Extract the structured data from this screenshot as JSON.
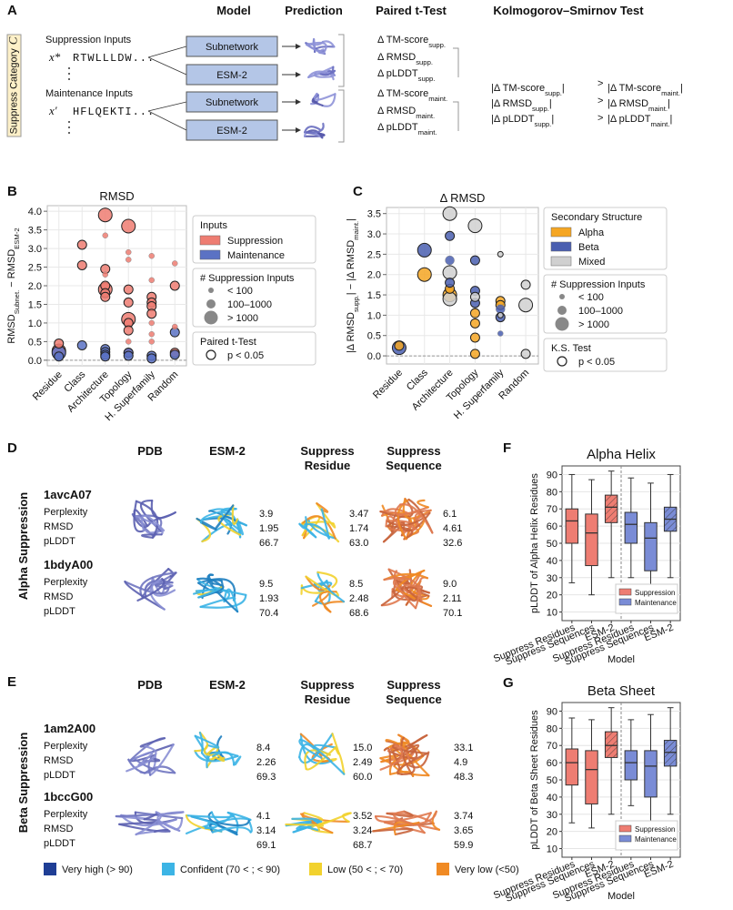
{
  "panels": {
    "A": {
      "label": "A",
      "headers": [
        "Model",
        "Prediction",
        "Paired t-Test",
        "Kolmogorov–Smirnov Test"
      ],
      "category": {
        "text": "Suppress Category",
        "var": "C"
      },
      "inputs": [
        {
          "title": "Suppression Inputs",
          "var": "x*",
          "sequence": "RTWLLLDW...",
          "color": "#d9302c",
          "models": [
            "Subnetwork",
            "ESM-2"
          ],
          "ttest": [
            [
              {
                "t": "Δ TM-score"
              },
              {
                "sub": "supp."
              }
            ],
            [
              {
                "t": "Δ RMSD"
              },
              {
                "sub": "supp."
              }
            ],
            [
              {
                "t": "Δ pLDDT"
              },
              {
                "sub": "supp."
              }
            ]
          ]
        },
        {
          "title": "Maintenance Inputs",
          "var": "x′",
          "sequence": "HFLQEKTI...",
          "color": "#222222",
          "models": [
            "Subnetwork",
            "ESM-2"
          ],
          "ttest": [
            [
              {
                "t": "Δ TM-score"
              },
              {
                "sub": "maint."
              }
            ],
            [
              {
                "t": "Δ RMSD"
              },
              {
                "sub": "maint."
              }
            ],
            [
              {
                "t": "Δ pLDDT"
              },
              {
                "sub": "maint."
              }
            ]
          ]
        }
      ],
      "ks": [
        {
          "left": [
            {
              "t": "|Δ TM-score"
            },
            {
              "sub": "supp."
            },
            {
              "t": "|"
            }
          ],
          "op": ">",
          "right": [
            {
              "t": "|Δ TM-score"
            },
            {
              "sub": "maint."
            },
            {
              "t": "|"
            }
          ]
        },
        {
          "left": [
            {
              "t": "|Δ RMSD"
            },
            {
              "sub": "supp."
            },
            {
              "t": "|"
            }
          ],
          "op": ">",
          "right": [
            {
              "t": "|Δ RMSD"
            },
            {
              "sub": "maint."
            },
            {
              "t": "|"
            }
          ]
        },
        {
          "left": [
            {
              "t": "|Δ pLDDT"
            },
            {
              "sub": "supp."
            },
            {
              "t": "|"
            }
          ],
          "op": ">",
          "right": [
            {
              "t": "|Δ pLDDT"
            },
            {
              "sub": "maint."
            },
            {
              "t": "|"
            }
          ]
        }
      ]
    },
    "D": {
      "label": "D",
      "side_label": "Alpha Suppression",
      "columns": [
        [
          "PDB"
        ],
        [
          "ESM-2"
        ],
        [
          "Suppress",
          "Residue"
        ],
        [
          "Suppress",
          "Sequence"
        ]
      ],
      "metrics": [
        "Perplexity",
        "RMSD",
        "pLDDT"
      ],
      "rows": [
        {
          "id": "1avcA07",
          "values": [
            [
              "3.9",
              "1.95",
              "66.7"
            ],
            [
              "3.47",
              "1.74",
              "63.0"
            ],
            [
              "6.1",
              "4.61",
              "32.6"
            ]
          ]
        },
        {
          "id": "1bdyA00",
          "values": [
            [
              "9.5",
              "1.93",
              "70.4"
            ],
            [
              "8.5",
              "2.48",
              "68.6"
            ],
            [
              "9.0",
              "2.11",
              "70.1"
            ]
          ]
        }
      ]
    },
    "E": {
      "label": "E",
      "side_label": "Beta Suppression",
      "columns": [
        [
          "PDB"
        ],
        [
          "ESM-2"
        ],
        [
          "Suppress",
          "Residue"
        ],
        [
          "Suppress",
          "Sequence"
        ]
      ],
      "metrics": [
        "Perplexity",
        "RMSD",
        "pLDDT"
      ],
      "rows": [
        {
          "id": "1am2A00",
          "values": [
            [
              "8.4",
              "2.26",
              "69.3"
            ],
            [
              "15.0",
              "2.49",
              "60.0"
            ],
            [
              "33.1",
              "4.9",
              "48.3"
            ]
          ]
        },
        {
          "id": "1bccG00",
          "values": [
            [
              "4.1",
              "3.14",
              "69.1"
            ],
            [
              "3.52",
              "3.24",
              "68.7"
            ],
            [
              "3.74",
              "3.65",
              "59.9"
            ]
          ]
        }
      ],
      "legend": [
        {
          "label": "Very high (> 90)",
          "color": "#1f3e95"
        },
        {
          "label": "Confident (70 < ; < 90)",
          "color": "#3cb4e5"
        },
        {
          "label": "Low (50 < ; < 70)",
          "color": "#f2d22e"
        },
        {
          "label": "Very low (<50)",
          "color": "#f08a24"
        }
      ]
    }
  },
  "chart_data": [
    {
      "panel_label": "B",
      "type": "scatter",
      "title": "RMSD",
      "ylabel": [
        {
          "t": "RMSD"
        },
        {
          "sub": "Subnet."
        },
        {
          "t": " − RMSD"
        },
        {
          "sub": "ESM-2"
        }
      ],
      "categories": [
        "Residue",
        "Class",
        "Architecture",
        "Topology",
        "H. Superfamily",
        "Random"
      ],
      "ylim": [
        -0.15,
        4.15
      ],
      "yticks": [
        {
          "value": 0,
          "label": "0.0"
        },
        0.5,
        {
          "value": 1,
          "label": "1.0"
        },
        1.5,
        {
          "value": 2,
          "label": "2.0"
        },
        2.5,
        {
          "value": 3,
          "label": "3.0"
        },
        3.5,
        {
          "value": 4,
          "label": "4.0"
        }
      ],
      "grid": true,
      "series": [
        {
          "name": "Suppression",
          "color": "#ee7d72",
          "x": [
            "Residue",
            "Residue",
            "Class",
            "Class",
            "Architecture",
            "Architecture",
            "Architecture",
            "Architecture",
            "Architecture",
            "Architecture",
            "Architecture",
            "Architecture",
            "Topology",
            "Topology",
            "Topology",
            "Topology",
            "Topology",
            "Topology",
            "Topology",
            "Topology",
            "Topology",
            "Topology",
            "H. Superfamily",
            "H. Superfamily",
            "H. Superfamily",
            "H. Superfamily",
            "H. Superfamily",
            "H. Superfamily",
            "H. Superfamily",
            "H. Superfamily",
            "H. Superfamily",
            "Random",
            "Random",
            "Random",
            "Random"
          ],
          "values": [
            0.45,
            0.25,
            3.1,
            2.55,
            3.9,
            3.35,
            2.45,
            2.3,
            2.0,
            1.9,
            1.8,
            1.7,
            3.6,
            2.9,
            2.7,
            1.9,
            1.55,
            1.1,
            1.0,
            0.8,
            0.5,
            0.2,
            2.8,
            2.15,
            1.7,
            1.55,
            1.45,
            1.25,
            1.0,
            0.7,
            0.5,
            2.6,
            2.0,
            0.9,
            0.2
          ],
          "sizes": [
            "100–1000",
            "> 1000",
            "100–1000",
            "100–1000",
            "> 1000",
            "< 100",
            "100–1000",
            "< 100",
            "100–1000",
            "> 1000",
            "100–1000",
            "100–1000",
            "> 1000",
            "< 100",
            "< 100",
            "100–1000",
            "100–1000",
            "> 1000",
            "100–1000",
            "100–1000",
            "< 100",
            "100–1000",
            "< 100",
            "< 100",
            "100–1000",
            "100–1000",
            "100–1000",
            "100–1000",
            "< 100",
            "< 100",
            "< 100",
            "< 100",
            "100–1000",
            "< 100",
            "100–1000"
          ],
          "significant": [
            true,
            true,
            true,
            true,
            true,
            false,
            true,
            false,
            true,
            true,
            true,
            true,
            true,
            false,
            false,
            true,
            true,
            true,
            true,
            true,
            false,
            true,
            false,
            false,
            true,
            true,
            true,
            true,
            false,
            false,
            false,
            false,
            true,
            false,
            true
          ]
        },
        {
          "name": "Maintenance",
          "color": "#5b72c4",
          "x": [
            "Residue",
            "Residue",
            "Class",
            "Architecture",
            "Architecture",
            "Architecture",
            "Architecture",
            "Topology",
            "Topology",
            "H. Superfamily",
            "H. Superfamily",
            "Random",
            "Random"
          ],
          "values": [
            0.2,
            0.1,
            0.4,
            0.3,
            0.22,
            0.15,
            0.1,
            0.2,
            0.12,
            0.12,
            0.05,
            0.75,
            0.15
          ],
          "sizes": [
            "> 1000",
            "100–1000",
            "100–1000",
            "100–1000",
            "100–1000",
            "100–1000",
            "100–1000",
            "100–1000",
            "100–1000",
            "100–1000",
            "100–1000",
            "100–1000",
            "100–1000"
          ],
          "significant": [
            true,
            true,
            true,
            true,
            true,
            true,
            true,
            true,
            true,
            true,
            true,
            true,
            true
          ]
        }
      ],
      "legend": {
        "title": "Inputs",
        "size_title": "# Suppression Inputs",
        "size_labels": [
          "< 100",
          "100–1000",
          "> 1000"
        ],
        "test_title": "Paired t-Test",
        "test_label": "p < 0.05"
      }
    },
    {
      "panel_label": "C",
      "type": "scatter",
      "title": "Δ RMSD",
      "ylabel": [
        {
          "t": "|Δ RMSD"
        },
        {
          "sub": "supp."
        },
        {
          "t": "| − |Δ RMSD"
        },
        {
          "sub": "maint."
        },
        {
          "t": "|"
        }
      ],
      "categories": [
        "Residue",
        "Class",
        "Architecture",
        "Topology",
        "H. Superfamily",
        "Random"
      ],
      "ylim": [
        -0.2,
        3.65
      ],
      "yticks": [
        {
          "value": 0,
          "label": "0.0"
        },
        0.5,
        {
          "value": 1,
          "label": "1.0"
        },
        1.5,
        {
          "value": 2,
          "label": "2.0"
        },
        2.5,
        {
          "value": 3,
          "label": "3.0"
        },
        3.5
      ],
      "grid": true,
      "series": [
        {
          "name": "Alpha",
          "color": "#f5a623",
          "x": [
            "Residue",
            "Class",
            "Architecture",
            "Architecture",
            "Topology",
            "Topology",
            "Topology",
            "Topology",
            "H. Superfamily",
            "H. Superfamily"
          ],
          "values": [
            0.25,
            2.0,
            1.65,
            1.5,
            1.05,
            0.8,
            0.45,
            0.05,
            1.35,
            1.25
          ],
          "sizes": [
            "100–1000",
            "> 1000",
            "100–1000",
            "> 1000",
            "100–1000",
            "100–1000",
            "100–1000",
            "100–1000",
            "100–1000",
            "100–1000"
          ],
          "significant": [
            true,
            true,
            true,
            true,
            true,
            true,
            true,
            true,
            true,
            true
          ]
        },
        {
          "name": "Beta",
          "color": "#4a5fb0",
          "x": [
            "Residue",
            "Class",
            "Architecture",
            "Architecture",
            "Architecture",
            "Topology",
            "Topology",
            "Topology",
            "H. Superfamily",
            "H. Superfamily",
            "H. Superfamily"
          ],
          "values": [
            0.2,
            2.6,
            2.95,
            2.35,
            1.8,
            2.35,
            1.6,
            1.3,
            1.15,
            0.95,
            0.55
          ],
          "sizes": [
            "> 1000",
            "> 1000",
            "100–1000",
            "100–1000",
            "100–1000",
            "100–1000",
            "100–1000",
            "100–1000",
            "100–1000",
            "100–1000",
            "< 100"
          ],
          "significant": [
            true,
            true,
            true,
            false,
            true,
            true,
            true,
            true,
            false,
            true,
            false
          ]
        },
        {
          "name": "Mixed",
          "color": "#d0d0d0",
          "x": [
            "Architecture",
            "Architecture",
            "Architecture",
            "Topology",
            "Topology",
            "H. Superfamily",
            "H. Superfamily",
            "Random",
            "Random",
            "Random"
          ],
          "values": [
            3.5,
            2.05,
            1.4,
            3.2,
            1.45,
            2.5,
            1.0,
            1.75,
            1.25,
            0.05
          ],
          "sizes": [
            "> 1000",
            "> 1000",
            "> 1000",
            "> 1000",
            "100–1000",
            "< 100",
            "< 100",
            "100–1000",
            "> 1000",
            "100–1000"
          ],
          "significant": [
            true,
            true,
            true,
            true,
            true,
            true,
            true,
            true,
            true,
            true
          ]
        }
      ],
      "legend": {
        "title": "Secondary Structure",
        "size_title": "# Suppression Inputs",
        "size_labels": [
          "< 100",
          "100–1000",
          "> 1000"
        ],
        "test_title": "K.S. Test",
        "test_label": "p < 0.05"
      }
    },
    {
      "panel_label": "F",
      "type": "box",
      "title": "Alpha Helix",
      "ylabel": "pLDDT of Alpha Helix Residues",
      "xlabel": "Model",
      "categories": [
        "Suppress Residues",
        "Suppress Sequences",
        "ESM-2",
        "Suppress Residues",
        "Suppress Sequences",
        "ESM-2"
      ],
      "ylim": [
        5,
        95
      ],
      "yticks": [
        10,
        20,
        30,
        40,
        50,
        60,
        70,
        80,
        90
      ],
      "grid": true,
      "legend": "lower right",
      "series": [
        {
          "name": "Suppression",
          "color": "#ee7d72",
          "hatch": [
            false,
            false,
            true
          ],
          "values": [
            [
              27,
              50,
              63,
              70,
              90
            ],
            [
              20,
              37,
              56,
              67,
              87
            ],
            [
              30,
              62,
              71,
              78,
              92
            ]
          ]
        },
        {
          "name": "Maintenance",
          "color": "#7a8cd6",
          "hatch": [
            false,
            false,
            true
          ],
          "values": [
            [
              30,
              50,
              61,
              68,
              88
            ],
            [
              20,
              34,
              53,
              62,
              85
            ],
            [
              30,
              57,
              64,
              71,
              90
            ]
          ]
        }
      ]
    },
    {
      "panel_label": "G",
      "type": "box",
      "title": "Beta Sheet",
      "ylabel": "pLDDT of Beta Sheet Residues",
      "xlabel": "Model",
      "categories": [
        "Suppress Residues",
        "Suppress Sequences",
        "ESM-2",
        "Suppress Residues",
        "Suppress Sequences",
        "ESM-2"
      ],
      "ylim": [
        5,
        95
      ],
      "yticks": [
        10,
        20,
        30,
        40,
        50,
        60,
        70,
        80,
        90
      ],
      "grid": true,
      "legend": "lower right",
      "series": [
        {
          "name": "Suppression",
          "color": "#ee7d72",
          "hatch": [
            false,
            false,
            true
          ],
          "values": [
            [
              25,
              47,
              60,
              68,
              86
            ],
            [
              22,
              36,
              56,
              67,
              85
            ],
            [
              30,
              63,
              70,
              78,
              92
            ]
          ]
        },
        {
          "name": "Maintenance",
          "color": "#7a8cd6",
          "hatch": [
            false,
            false,
            true
          ],
          "values": [
            [
              35,
              50,
              60,
              67,
              85
            ],
            [
              22,
              40,
              58,
              67,
              88
            ],
            [
              30,
              58,
              66,
              73,
              92
            ]
          ]
        }
      ]
    }
  ]
}
